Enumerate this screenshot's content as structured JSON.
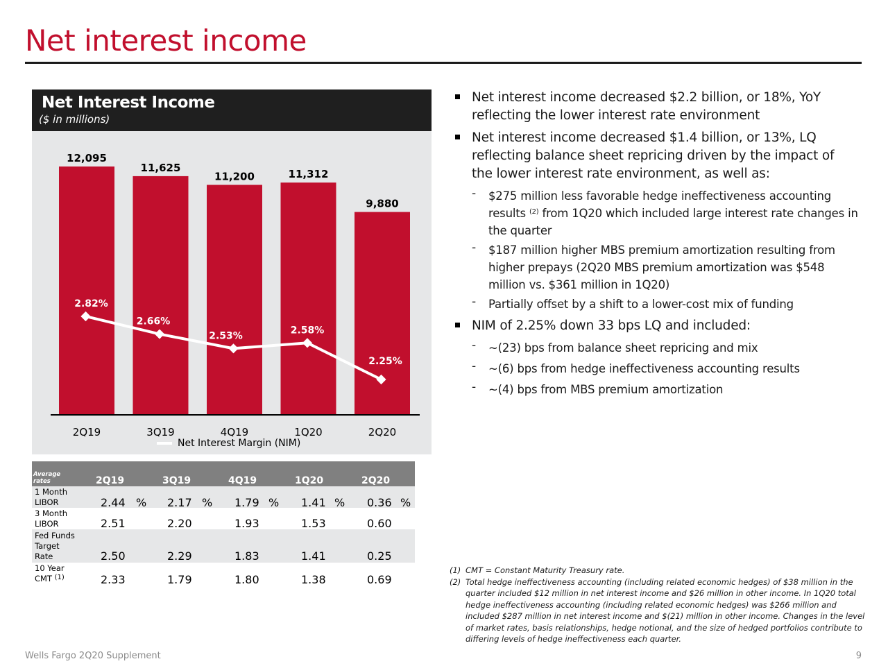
{
  "page": {
    "title": "Net interest income",
    "footer_left": "Wells Fargo 2Q20 Supplement",
    "page_number": "9"
  },
  "chart_data": {
    "type": "bar",
    "title": "Net Interest Income",
    "subtitle": "($ in millions)",
    "categories": [
      "2Q19",
      "3Q19",
      "4Q19",
      "1Q20",
      "2Q20"
    ],
    "values": [
      12095,
      11625,
      11200,
      11312,
      9880
    ],
    "value_labels": [
      "12,095",
      "11,625",
      "11,200",
      "11,312",
      "9,880"
    ],
    "bar_color": "#c10f2d",
    "line_series": {
      "name": "Net Interest Margin (NIM)",
      "values": [
        2.82,
        2.66,
        2.53,
        2.58,
        2.25
      ],
      "labels": [
        "2.82%",
        "2.66%",
        "2.53%",
        "2.58%",
        "2.25%"
      ],
      "color": "#ffffff"
    },
    "legend_position": "bottom",
    "grid": false
  },
  "bullets": [
    {
      "type": "main",
      "text": "Net interest income decreased $2.2 billion, or 18%, YoY reflecting the lower interest rate environment"
    },
    {
      "type": "main",
      "text": "Net interest income decreased $1.4 billion, or 13%, LQ reflecting balance sheet repricing driven by the impact of the lower interest rate environment, as well as:"
    },
    {
      "type": "sub",
      "dash": "-",
      "text_a": "$275 million less favorable hedge ineffectiveness accounting results",
      "sup": "(2)",
      "text_b": " from 1Q20 which included large interest rate changes in the quarter"
    },
    {
      "type": "sub",
      "dash": "-",
      "text": "$187 million higher MBS premium amortization resulting from higher prepays (2Q20 MBS premium amortization was $548 million vs. $361 million in 1Q20)"
    },
    {
      "type": "sub",
      "dash": "-",
      "text": "Partially offset by a shift to a lower-cost mix of funding"
    },
    {
      "type": "main",
      "text": "NIM of 2.25% down 33 bps LQ and included:"
    },
    {
      "type": "sub",
      "dash": "-",
      "text": "~(23) bps from balance sheet repricing and mix"
    },
    {
      "type": "sub",
      "dash": "-",
      "text": "~(6) bps from hedge ineffectiveness accounting results"
    },
    {
      "type": "sub",
      "dash": "-",
      "text": "~(4) bps from MBS premium amortization"
    }
  ],
  "rates_table": {
    "header_label": "Average rates",
    "columns": [
      "2Q19",
      "3Q19",
      "4Q19",
      "1Q20",
      "2Q20"
    ],
    "rows": [
      {
        "label": "1 Month LIBOR",
        "values": [
          "2.44",
          "2.17",
          "1.79",
          "1.41",
          "0.36"
        ],
        "unit": "%"
      },
      {
        "label": "3 Month LIBOR",
        "values": [
          "2.51",
          "2.20",
          "1.93",
          "1.53",
          "0.60"
        ]
      },
      {
        "label": "Fed Funds Target Rate",
        "values": [
          "2.50",
          "2.29",
          "1.83",
          "1.41",
          "0.25"
        ]
      },
      {
        "label": "10 Year CMT",
        "label_sup": "(1)",
        "values": [
          "2.33",
          "1.79",
          "1.80",
          "1.38",
          "0.69"
        ]
      }
    ]
  },
  "footnotes": [
    {
      "num": "(1)",
      "text": "CMT = Constant Maturity Treasury rate."
    },
    {
      "num": "(2)",
      "text": "Total hedge ineffectiveness accounting (including related economic hedges) of $38 million in the quarter included $12 million in net interest income and $26 million in other income. In 1Q20 total hedge ineffectiveness accounting (including related economic hedges) was $266 million and included $287 million in net interest income and $(21) million in other income. Changes in the level of market rates, basis relationships, hedge notional, and the size of hedged portfolios contribute to differing levels of hedge ineffectiveness each quarter."
    }
  ]
}
